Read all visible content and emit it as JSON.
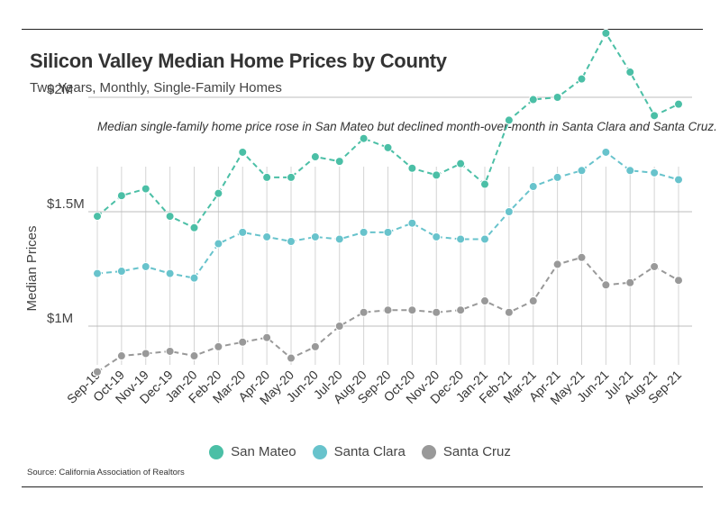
{
  "title": "Silicon Valley Median Home Prices by County",
  "subtitle": "Two Years, Monthly, Single-Family Homes",
  "annotation": "Median single-family home price rose in San Mateo but declined month-over-month in Santa Clara and Santa Cruz.",
  "source": "Source:  California Association of Realtors",
  "chart_data": {
    "type": "line",
    "ylabel": "Median Prices",
    "xlabel": "",
    "ylim": [
      0.65,
      2.45
    ],
    "yticks": [
      1.0,
      1.5,
      2.0
    ],
    "ytick_labels": [
      "$1M",
      "$1.5M",
      "$2M"
    ],
    "grid": true,
    "legend_position": "bottom",
    "categories": [
      "Sep-19",
      "Oct-19",
      "Nov-19",
      "Dec-19",
      "Jan-20",
      "Feb-20",
      "Mar-20",
      "Apr-20",
      "May-20",
      "Jun-20",
      "Jul-20",
      "Aug-20",
      "Sep-20",
      "Oct-20",
      "Nov-20",
      "Dec-20",
      "Jan-21",
      "Feb-21",
      "Mar-21",
      "Apr-21",
      "May-21",
      "Jun-21",
      "Jul-21",
      "Aug-21",
      "Sep-21"
    ],
    "series": [
      {
        "name": "San Mateo",
        "color": "#4bbfa6",
        "values": [
          1.48,
          1.57,
          1.6,
          1.48,
          1.43,
          1.58,
          1.76,
          1.65,
          1.65,
          1.74,
          1.72,
          1.82,
          1.78,
          1.69,
          1.66,
          1.71,
          1.62,
          1.9,
          1.99,
          2.0,
          2.08,
          2.28,
          2.11,
          1.92,
          1.97
        ]
      },
      {
        "name": "Santa Clara",
        "color": "#68c3cc",
        "values": [
          1.23,
          1.24,
          1.26,
          1.23,
          1.21,
          1.36,
          1.41,
          1.39,
          1.37,
          1.39,
          1.38,
          1.41,
          1.41,
          1.45,
          1.39,
          1.38,
          1.38,
          1.5,
          1.61,
          1.65,
          1.68,
          1.76,
          1.68,
          1.67,
          1.64
        ]
      },
      {
        "name": "Santa Cruz",
        "color": "#999999",
        "values": [
          0.8,
          0.87,
          0.88,
          0.89,
          0.87,
          0.91,
          0.93,
          0.95,
          0.86,
          0.91,
          1.0,
          1.06,
          1.07,
          1.07,
          1.06,
          1.07,
          1.11,
          1.06,
          1.11,
          1.27,
          1.3,
          1.18,
          1.19,
          1.26,
          1.2
        ]
      }
    ]
  }
}
